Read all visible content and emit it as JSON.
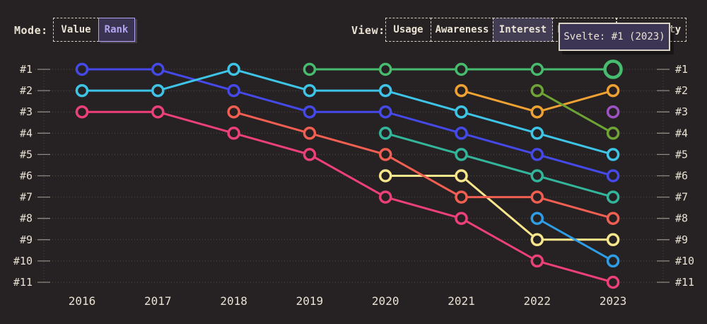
{
  "colors": {
    "background": "#262122",
    "text": "#eae2d4",
    "grid": "#55504d",
    "tick": "#8f8983",
    "accent_purple": "#b2a4f0",
    "selected_fill": "#433d54",
    "tooltip_bg": "#3c3553",
    "border_cream": "#d9d1c3"
  },
  "controls": {
    "mode": {
      "label": "Mode:",
      "options": [
        {
          "label": "Value",
          "selected": false
        },
        {
          "label": "Rank",
          "selected": true
        }
      ]
    },
    "view": {
      "label": "View:",
      "options": [
        {
          "label": "Usage",
          "selected": false
        },
        {
          "label": "Awareness",
          "selected": false
        },
        {
          "label": "Interest",
          "selected": true
        },
        {
          "label": "Retention",
          "selected": false
        },
        {
          "label": "Positivity",
          "selected": false
        }
      ]
    }
  },
  "tooltip": {
    "text": "Svelte: #1 (2023)"
  },
  "chart_data": {
    "type": "line",
    "subtype": "bump-rank",
    "x": [
      "2016",
      "2017",
      "2018",
      "2019",
      "2020",
      "2021",
      "2022",
      "2023"
    ],
    "rank_labels": [
      "#1",
      "#2",
      "#3",
      "#4",
      "#5",
      "#6",
      "#7",
      "#8",
      "#9",
      "#10",
      "#11"
    ],
    "ylim": [
      1,
      11
    ],
    "grid": "dotted-horizontal",
    "legend": "none",
    "highlight": {
      "series": "svelte-green",
      "year": "2023",
      "rank": 1
    },
    "series": [
      {
        "name": "indigo",
        "color": "#4549e8",
        "ranks": [
          1,
          1,
          2,
          3,
          3,
          4,
          5,
          6
        ]
      },
      {
        "name": "cyan",
        "color": "#3ec4e6",
        "ranks": [
          2,
          2,
          1,
          2,
          2,
          3,
          4,
          5
        ]
      },
      {
        "name": "pink",
        "color": "#ec4078",
        "ranks": [
          3,
          3,
          4,
          5,
          7,
          8,
          10,
          11
        ]
      },
      {
        "name": "yellow",
        "color": "#f7e68c",
        "ranks": [
          null,
          null,
          null,
          null,
          6,
          6,
          9,
          9
        ]
      },
      {
        "name": "teal",
        "color": "#33b59b",
        "ranks": [
          null,
          null,
          null,
          null,
          4,
          5,
          6,
          7
        ]
      },
      {
        "name": "salmon",
        "color": "#f15f52",
        "ranks": [
          null,
          null,
          3,
          4,
          5,
          7,
          7,
          8
        ]
      },
      {
        "name": "svelte-green",
        "color": "#47bb6e",
        "ranks": [
          null,
          null,
          null,
          1,
          1,
          1,
          1,
          1
        ]
      },
      {
        "name": "orange",
        "color": "#efa233",
        "ranks": [
          null,
          null,
          null,
          null,
          null,
          2,
          3,
          2
        ]
      },
      {
        "name": "olive",
        "color": "#6da435",
        "ranks": [
          null,
          null,
          null,
          null,
          null,
          null,
          2,
          4
        ]
      },
      {
        "name": "sky-blue",
        "color": "#2f9de4",
        "ranks": [
          null,
          null,
          null,
          null,
          null,
          null,
          8,
          10
        ]
      },
      {
        "name": "purple",
        "color": "#9d53c3",
        "ranks": [
          null,
          null,
          null,
          null,
          null,
          null,
          null,
          3
        ]
      }
    ]
  }
}
